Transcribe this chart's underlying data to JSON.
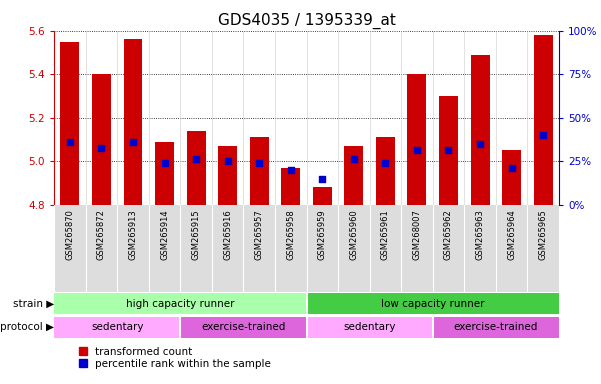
{
  "title": "GDS4035 / 1395339_at",
  "samples": [
    "GSM265870",
    "GSM265872",
    "GSM265913",
    "GSM265914",
    "GSM265915",
    "GSM265916",
    "GSM265957",
    "GSM265958",
    "GSM265959",
    "GSM265960",
    "GSM265961",
    "GSM268007",
    "GSM265962",
    "GSM265963",
    "GSM265964",
    "GSM265965"
  ],
  "bar_values": [
    5.55,
    5.4,
    5.56,
    5.09,
    5.14,
    5.07,
    5.11,
    4.97,
    4.88,
    5.07,
    5.11,
    5.4,
    5.3,
    5.49,
    5.05,
    5.58
  ],
  "blue_dot_values": [
    5.09,
    5.06,
    5.09,
    4.99,
    5.01,
    5.0,
    4.99,
    4.96,
    4.92,
    5.01,
    4.99,
    5.05,
    5.05,
    5.08,
    4.97,
    5.12
  ],
  "ylim": [
    4.8,
    5.6
  ],
  "yticks": [
    4.8,
    5.0,
    5.2,
    5.4,
    5.6
  ],
  "right_yticks": [
    0,
    25,
    50,
    75,
    100
  ],
  "right_ylim": [
    0,
    100
  ],
  "bar_color": "#cc0000",
  "dot_color": "#0000cc",
  "bar_width": 0.6,
  "background_color": "#ffffff",
  "grid_color": "#000000",
  "strain_groups": [
    {
      "text": "high capacity runner",
      "start": 0,
      "end": 8,
      "color": "#aaffaa"
    },
    {
      "text": "low capacity runner",
      "start": 8,
      "end": 16,
      "color": "#44cc44"
    }
  ],
  "protocol_groups": [
    {
      "text": "sedentary",
      "start": 0,
      "end": 4,
      "color": "#ffaaff"
    },
    {
      "text": "exercise-trained",
      "start": 4,
      "end": 8,
      "color": "#dd66dd"
    },
    {
      "text": "sedentary",
      "start": 8,
      "end": 12,
      "color": "#ffaaff"
    },
    {
      "text": "exercise-trained",
      "start": 12,
      "end": 16,
      "color": "#dd66dd"
    }
  ],
  "legend_items": [
    {
      "label": "transformed count",
      "color": "#cc0000",
      "marker": "s"
    },
    {
      "label": "percentile rank within the sample",
      "color": "#0000cc",
      "marker": "s"
    }
  ],
  "left_axis_color": "#cc0000",
  "right_axis_color": "#0000cc",
  "title_fontsize": 11,
  "tick_fontsize": 7.5,
  "sample_fontsize": 6.0
}
